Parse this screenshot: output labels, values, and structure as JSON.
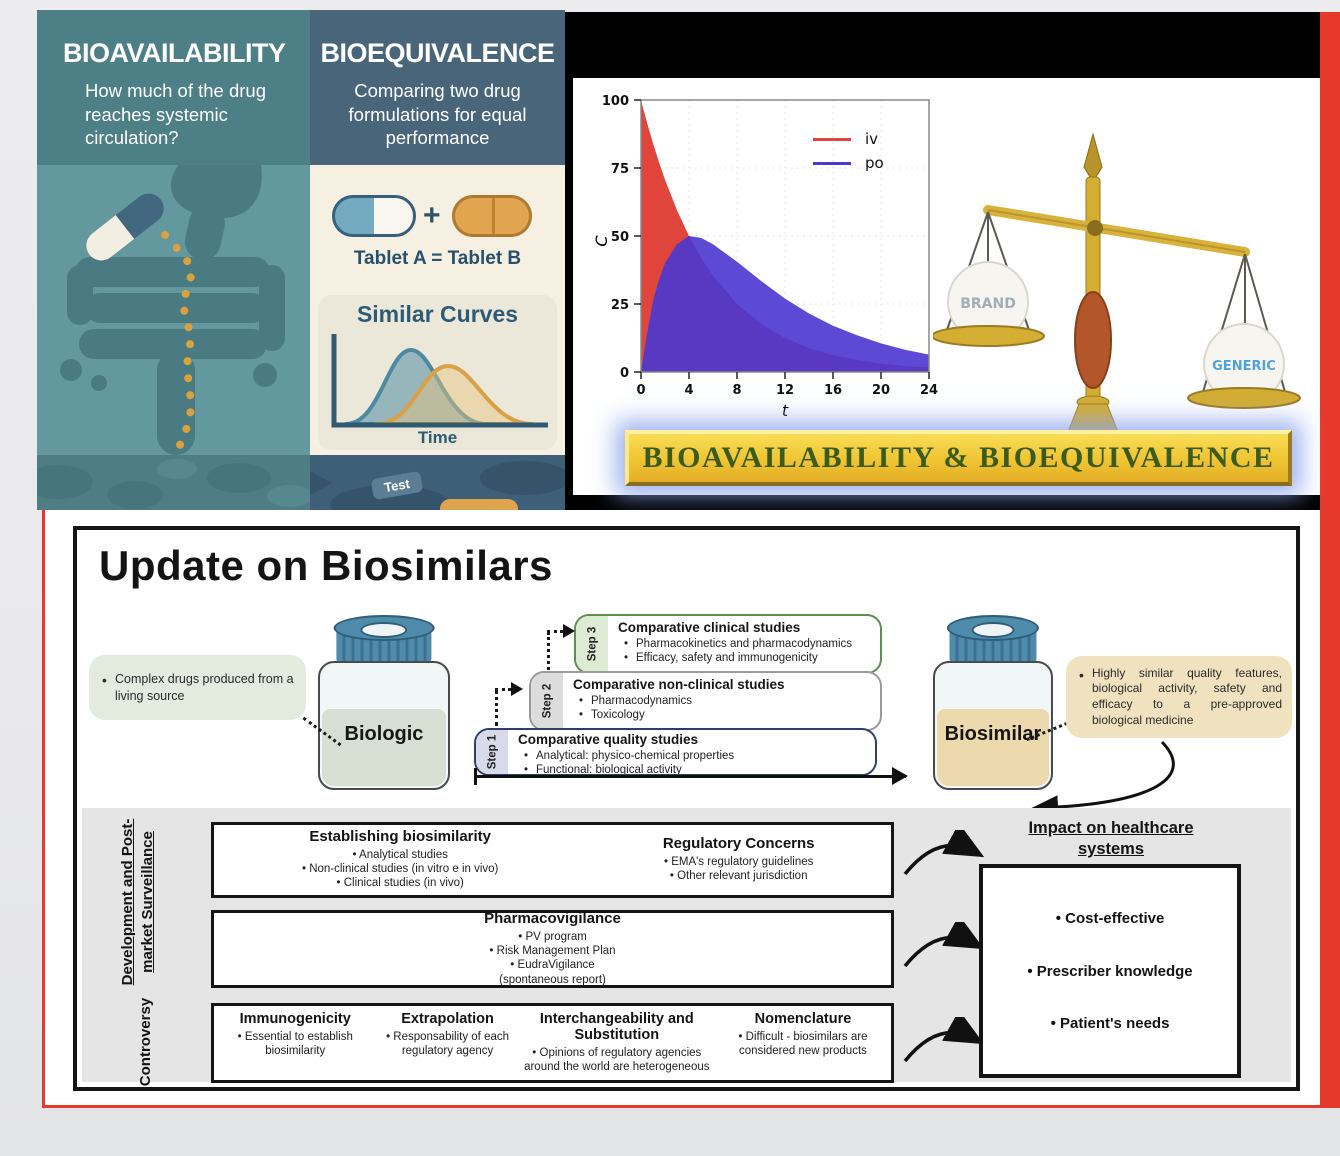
{
  "page": {
    "accent_red": "#e6392e"
  },
  "infographic": {
    "bioavailability": {
      "title": "BIOAVAILABILITY",
      "subtitle": "How much of the drug reaches systemic circulation?"
    },
    "bioequivalence": {
      "title": "BIOEQUIVALENCE",
      "subtitle": "Comparing two drug formulations for equal performance",
      "tablet_labels": "Tablet A  =  Tablet B",
      "plus_sign": "+",
      "curves_title": "Similar Curves",
      "time_label": "Time",
      "test_label": "Test"
    }
  },
  "pk_figure": {
    "banner": "BIOAVAILABILITY & BIOEQUIVALENCE",
    "brand_label": "BRAND",
    "generic_label": "GENERIC"
  },
  "chart_data": {
    "type": "area",
    "title": "",
    "xlabel": "t",
    "ylabel": "C",
    "xlim": [
      0,
      24
    ],
    "ylim": [
      0,
      100
    ],
    "xticks": [
      0,
      4,
      8,
      12,
      16,
      20,
      24
    ],
    "yticks": [
      0,
      25,
      50,
      75,
      100
    ],
    "grid": true,
    "legend_position": "upper right",
    "x": [
      0,
      0.5,
      1,
      1.5,
      2,
      3,
      4,
      5,
      6,
      8,
      10,
      12,
      14,
      16,
      18,
      20,
      22,
      24
    ],
    "series": [
      {
        "name": "iv",
        "color": "#e0453c",
        "values": [
          100,
          91.7,
          84.1,
          77.1,
          70.7,
          59.5,
          50,
          42,
          35.4,
          25,
          17.7,
          12.5,
          8.8,
          6.2,
          4.4,
          3.1,
          2.2,
          1.6
        ]
      },
      {
        "name": "po",
        "color": "#4a36d0",
        "values": [
          0,
          14,
          26,
          34,
          40,
          47,
          50,
          49.3,
          47,
          40.5,
          33.5,
          27,
          21.5,
          17,
          13.5,
          10.5,
          8.2,
          6.4
        ]
      }
    ]
  },
  "biosimilars": {
    "title": "Update on Biosimilars",
    "biologic_note": "Complex drugs produced from a living source",
    "biologic_label": "Biologic",
    "biosimilar_label": "Biosimilar",
    "biosimilar_note": "Highly similar quality features, biological activity, safety and efficacy to a pre-approved biological medicine",
    "steps": [
      {
        "label": "Step 1",
        "title": "Comparative quality studies",
        "bullets": [
          "Analytical: physico-chemical properties",
          "Functional: biological activity"
        ]
      },
      {
        "label": "Step 2",
        "title": "Comparative non-clinical studies",
        "bullets": [
          "Pharmacodynamics",
          "Toxicology"
        ]
      },
      {
        "label": "Step 3",
        "title": "Comparative clinical studies",
        "bullets": [
          "Pharmacokinetics and pharmacodynamics",
          "Efficacy,  safety and immunogenicity"
        ]
      }
    ],
    "row_labels": {
      "development": "Development and Post-market Surveillance",
      "development_line1": "Development and Post-",
      "development_line2": "market Surveillance",
      "controversy": "Controversy"
    },
    "establishing": {
      "title": "Establishing biosimilarity",
      "bullets": [
        "Analytical studies",
        "Non-clinical studies (in vitro e in vivo)",
        "Clinical studies (in vivo)"
      ]
    },
    "regulatory": {
      "title": "Regulatory Concerns",
      "bullets": [
        "EMA's regulatory guidelines",
        "Other relevant jurisdiction"
      ]
    },
    "pharmacovigilance": {
      "title": "Pharmacovigilance",
      "bullets": [
        "PV program",
        "Risk Management Plan",
        "EudraVigilance",
        "(spontaneous report)"
      ]
    },
    "immunogenicity": {
      "title": "Immunogenicity",
      "bullets": [
        "Essential to establish biosimilarity"
      ]
    },
    "extrapolation": {
      "title": "Extrapolation",
      "bullets": [
        "Responsability of each regulatory agency"
      ]
    },
    "interchangeability": {
      "title": "Interchangeability and Substitution",
      "bullets": [
        "Opinions of regulatory agencies around the world are heterogeneous"
      ]
    },
    "nomenclature": {
      "title": "Nomenclature",
      "bullets": [
        "Difficult - biosimilars are considered new products"
      ]
    },
    "impact": {
      "title_line1": "Impact on healthcare",
      "title_line2": "systems",
      "bullets": [
        "Cost-effective",
        "Prescriber knowledge",
        "Patient's needs"
      ]
    }
  }
}
